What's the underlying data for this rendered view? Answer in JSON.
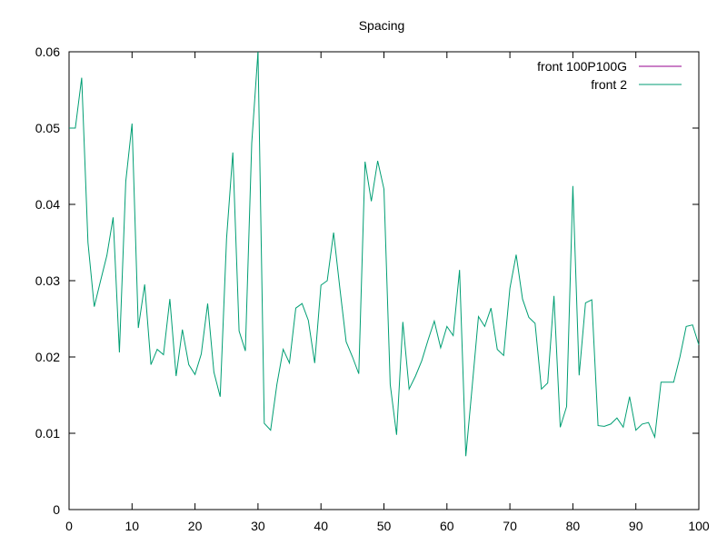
{
  "chart_data": {
    "type": "line",
    "title": "Spacing",
    "xlabel": "",
    "ylabel": "",
    "xlim": [
      0,
      100
    ],
    "ylim": [
      0,
      0.06
    ],
    "x_ticks": [
      "0",
      "10",
      "20",
      "30",
      "40",
      "50",
      "60",
      "70",
      "80",
      "90",
      "100"
    ],
    "y_ticks": [
      "0",
      "0.01",
      "0.02",
      "0.03",
      "0.04",
      "0.05",
      "0.06"
    ],
    "grid": false,
    "legend_position": "top-right",
    "series": [
      {
        "name": "front 100P100G",
        "color": "#94008f",
        "x": [],
        "y": []
      },
      {
        "name": "front 2",
        "color": "#009e73",
        "x": [
          0,
          1,
          2,
          3,
          4,
          5,
          6,
          7,
          8,
          9,
          10,
          11,
          12,
          13,
          14,
          15,
          16,
          17,
          18,
          19,
          20,
          21,
          22,
          23,
          24,
          25,
          26,
          27,
          28,
          29,
          30,
          31,
          32,
          33,
          34,
          35,
          36,
          37,
          38,
          39,
          40,
          41,
          42,
          43,
          44,
          45,
          46,
          47,
          48,
          49,
          50,
          51,
          52,
          53,
          54,
          55,
          56,
          57,
          58,
          59,
          60,
          61,
          62,
          63,
          64,
          65,
          66,
          67,
          68,
          69,
          70,
          71,
          72,
          73,
          74,
          75,
          76,
          77,
          78,
          79,
          80,
          81,
          82,
          83,
          84,
          85,
          86,
          87,
          88,
          89,
          90,
          91,
          92,
          93,
          94,
          95,
          96,
          97,
          98,
          99,
          100
        ],
        "y": [
          0.05,
          0.05,
          0.0566,
          0.035,
          0.0266,
          0.03,
          0.0333,
          0.0383,
          0.0206,
          0.043,
          0.0506,
          0.0238,
          0.0295,
          0.019,
          0.021,
          0.0203,
          0.0276,
          0.0175,
          0.0236,
          0.019,
          0.0177,
          0.0204,
          0.027,
          0.018,
          0.0148,
          0.0355,
          0.0468,
          0.0234,
          0.0208,
          0.048,
          0.06,
          0.0113,
          0.0104,
          0.0164,
          0.021,
          0.0192,
          0.0264,
          0.027,
          0.0248,
          0.0192,
          0.0294,
          0.03,
          0.0363,
          0.029,
          0.022,
          0.02,
          0.0178,
          0.0456,
          0.0404,
          0.0457,
          0.042,
          0.0164,
          0.0098,
          0.0246,
          0.0158,
          0.0175,
          0.0195,
          0.0222,
          0.0247,
          0.0212,
          0.024,
          0.0228,
          0.0314,
          0.007,
          0.016,
          0.0253,
          0.024,
          0.0264,
          0.021,
          0.0202,
          0.029,
          0.0334,
          0.0276,
          0.0252,
          0.0244,
          0.0158,
          0.0166,
          0.028,
          0.0108,
          0.0135,
          0.0424,
          0.0176,
          0.0271,
          0.0275,
          0.011,
          0.0109,
          0.0112,
          0.012,
          0.0108,
          0.0148,
          0.0104,
          0.0112,
          0.0114,
          0.0095,
          0.0167,
          0.0167,
          0.0167,
          0.02,
          0.024,
          0.0242,
          0.0216
        ]
      }
    ]
  }
}
